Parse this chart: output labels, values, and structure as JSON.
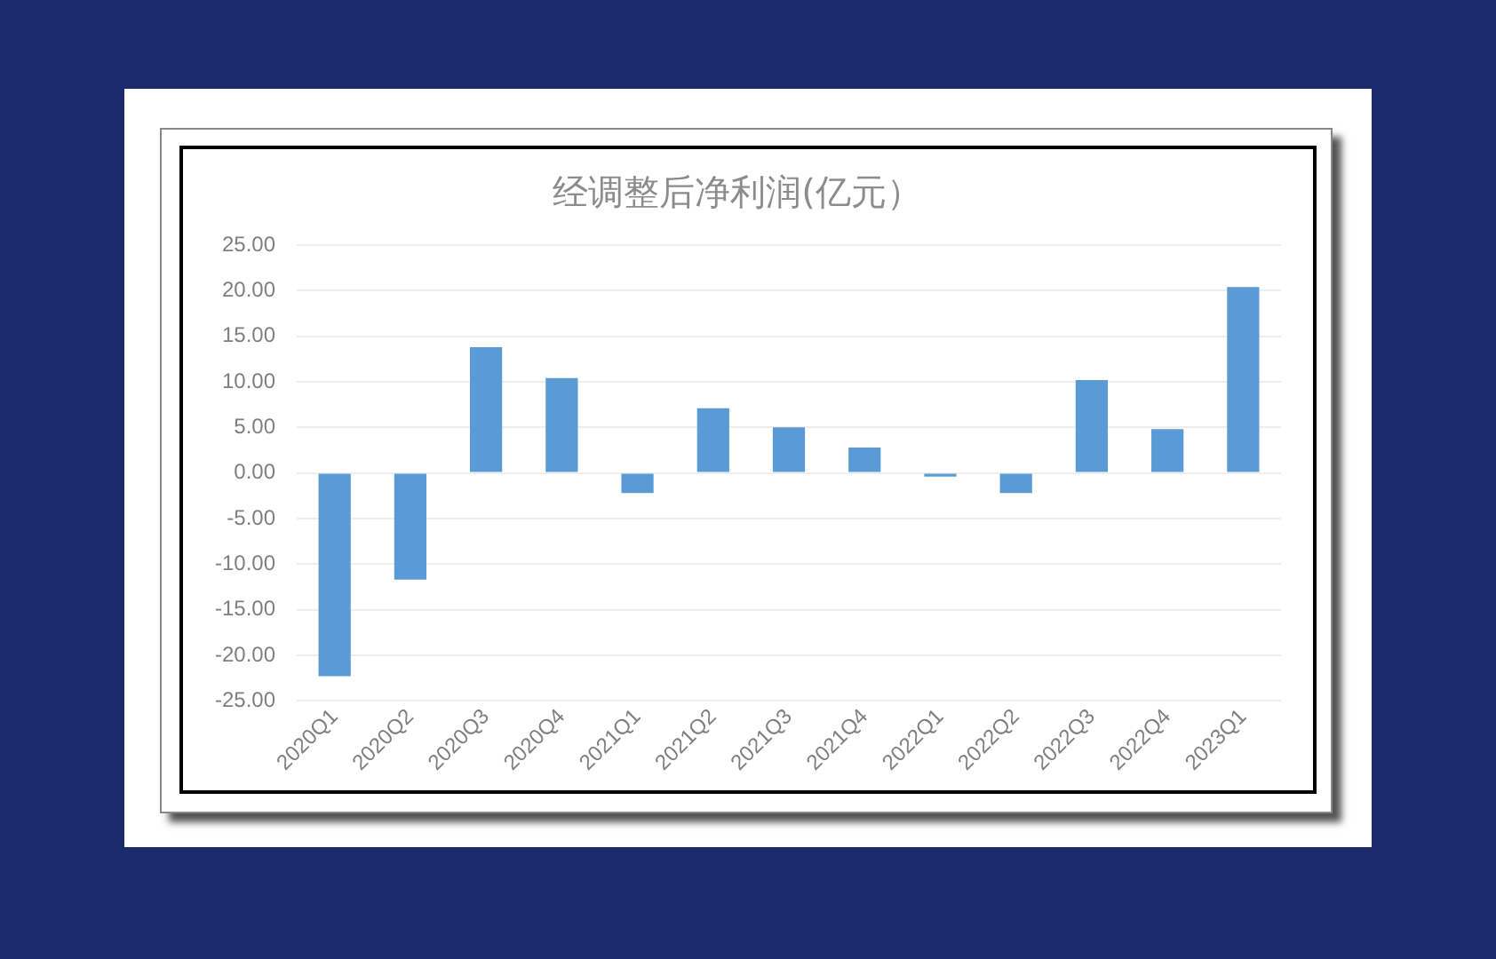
{
  "chart_data": {
    "type": "bar",
    "title": "经调整后净利润(亿元）",
    "categories": [
      "2020Q1",
      "2020Q2",
      "2020Q3",
      "2020Q4",
      "2021Q1",
      "2021Q2",
      "2021Q3",
      "2021Q4",
      "2022Q1",
      "2022Q2",
      "2022Q3",
      "2022Q4",
      "2023Q1"
    ],
    "values": [
      -22.3,
      -11.7,
      13.8,
      10.4,
      -2.2,
      7.1,
      5.0,
      2.8,
      -0.4,
      -2.2,
      10.2,
      4.8,
      20.4
    ],
    "color": "#5b9bd5",
    "ylim": [
      -25,
      25
    ],
    "yticks": [
      {
        "value": -25,
        "label": "-25.00"
      },
      {
        "value": -20,
        "label": "-20.00"
      },
      {
        "value": -15,
        "label": "-15.00"
      },
      {
        "value": -10,
        "label": "-10.00"
      },
      {
        "value": -5,
        "label": "-5.00"
      },
      {
        "value": 0,
        "label": "0.00"
      },
      {
        "value": 5,
        "label": "5.00"
      },
      {
        "value": 10,
        "label": "10.00"
      },
      {
        "value": 15,
        "label": "15.00"
      },
      {
        "value": 20,
        "label": "20.00"
      },
      {
        "value": 25,
        "label": "25.00"
      }
    ],
    "grid": "y",
    "legend": false
  }
}
